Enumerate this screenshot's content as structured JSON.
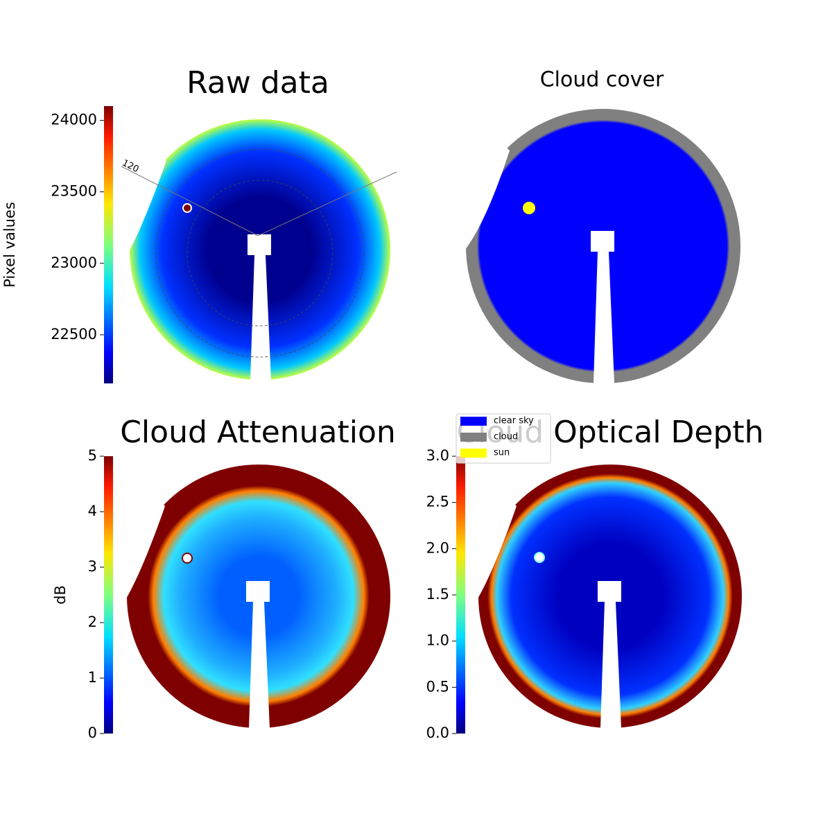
{
  "chart_data": [
    {
      "type": "image",
      "title": "Raw data",
      "colormap": "jet",
      "annotations": [
        "120"
      ],
      "colorbar": {
        "label": "Pixel values",
        "lim": [
          22160,
          24100
        ],
        "ticks": [
          22500,
          23000,
          23500,
          24000
        ]
      }
    },
    {
      "type": "image",
      "title": "Cloud cover",
      "legend": [
        {
          "name": "clear sky",
          "color": "#0000ff"
        },
        {
          "name": "cloud",
          "color": "#808080"
        },
        {
          "name": "sun",
          "color": "#ffff00"
        }
      ]
    },
    {
      "type": "image",
      "title": "Cloud Attenuation",
      "colormap": "jet",
      "colorbar": {
        "label": "dB",
        "lim": [
          0,
          5
        ],
        "ticks": [
          0,
          1,
          2,
          3,
          4,
          5
        ]
      }
    },
    {
      "type": "image",
      "title": "Cloud Optical Depth",
      "colormap": "jet",
      "colorbar": {
        "lim": [
          0,
          3
        ],
        "ticks": [
          {
            "value": 0,
            "label": "0.0"
          },
          {
            "value": 0.5,
            "label": "0.5"
          },
          {
            "value": 1,
            "label": "1.0"
          },
          {
            "value": 1.5,
            "label": "1.5"
          },
          {
            "value": 2,
            "label": "2.0"
          },
          {
            "value": 2.5,
            "label": "2.5"
          },
          {
            "value": 3,
            "label": "3.0"
          }
        ]
      }
    }
  ]
}
